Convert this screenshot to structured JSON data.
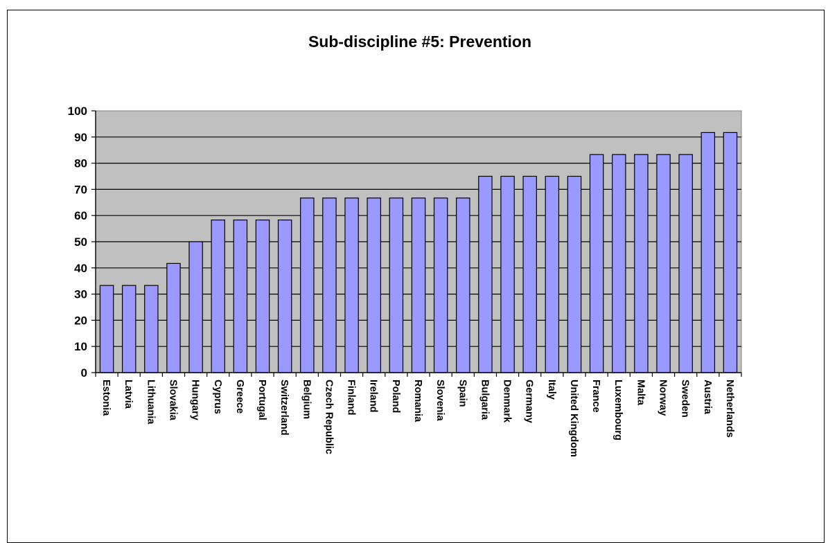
{
  "chart_data": {
    "type": "bar",
    "title": "Sub-discipline #5: Prevention",
    "xlabel": "",
    "ylabel": "",
    "ylim": [
      0,
      100
    ],
    "yticks": [
      0,
      10,
      20,
      30,
      40,
      50,
      60,
      70,
      80,
      90,
      100
    ],
    "grid": true,
    "legend": "none",
    "categories": [
      "Estonia",
      "Latvia",
      "Lithuania",
      "Slovakia",
      "Hungary",
      "Cyprus",
      "Greece",
      "Portugal",
      "Switzerland",
      "Belgium",
      "Czech Republic",
      "Finland",
      "Ireland",
      "Poland",
      "Romania",
      "Slovenia",
      "Spain",
      "Bulgaria",
      "Denmark",
      "Germany",
      "Italy",
      "United Kingdom",
      "France",
      "Luxembourg",
      "Malta",
      "Norway",
      "Sweden",
      "Austria",
      "Netherlands"
    ],
    "values": [
      33.3,
      33.3,
      33.3,
      41.7,
      50,
      58.3,
      58.3,
      58.3,
      58.3,
      66.7,
      66.7,
      66.7,
      66.7,
      66.7,
      66.7,
      66.7,
      66.7,
      75,
      75,
      75,
      75,
      75,
      83.3,
      83.3,
      83.3,
      83.3,
      83.3,
      91.7,
      91.7
    ],
    "colors": {
      "bar_fill": "#9999ff",
      "bar_stroke": "#000000",
      "plot_background": "#c0c0c0",
      "gridline": "#000000"
    }
  }
}
